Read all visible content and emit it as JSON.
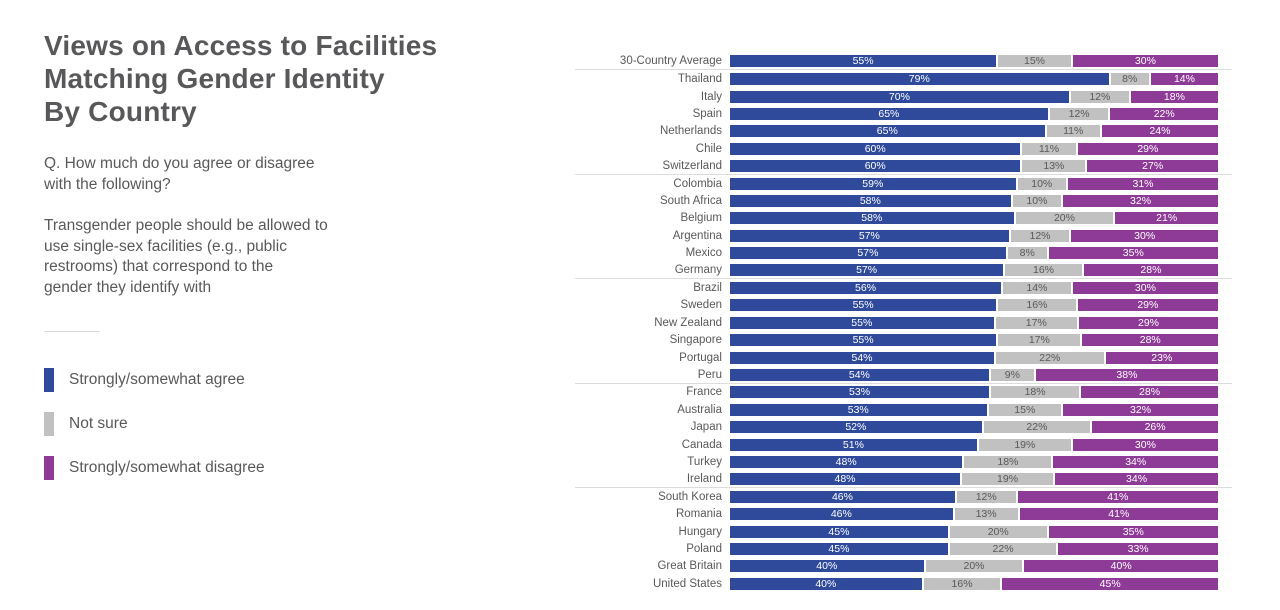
{
  "title": "Views on Access to Facilities\nMatching Gender Identity\nBy Country",
  "question": "Q. How much do you agree or disagree\nwith the following?",
  "statement": "Transgender people should be allowed to\nuse single-sex facilities (e.g., public\nrestrooms) that correspond to the\ngender they identify with",
  "legend": [
    {
      "label": "Strongly/somewhat agree",
      "color": "#2f4a9b"
    },
    {
      "label": "Not sure",
      "color": "#c2c1c1"
    },
    {
      "label": "Strongly/somewhat disagree",
      "color": "#8e3a97"
    }
  ],
  "chart_data": {
    "type": "bar",
    "orientation": "horizontal-stacked",
    "normalized_to_full_width": true,
    "value_suffix": "%",
    "categories": [
      "30-Country Average",
      "Thailand",
      "Italy",
      "Spain",
      "Netherlands",
      "Chile",
      "Switzerland",
      "Colombia",
      "South Africa",
      "Belgium",
      "Argentina",
      "Mexico",
      "Germany",
      "Brazil",
      "Sweden",
      "New Zealand",
      "Singapore",
      "Portugal",
      "Peru",
      "France",
      "Australia",
      "Japan",
      "Canada",
      "Turkey",
      "Ireland",
      "South Korea",
      "Romania",
      "Hungary",
      "Poland",
      "Great Britain",
      "United States"
    ],
    "series": [
      {
        "name": "Strongly/somewhat agree",
        "color": "#2f4a9b",
        "label_color": "#ffffff",
        "values": [
          55,
          79,
          70,
          65,
          65,
          60,
          60,
          59,
          58,
          58,
          57,
          57,
          57,
          56,
          55,
          55,
          55,
          54,
          54,
          53,
          53,
          52,
          51,
          48,
          48,
          46,
          46,
          45,
          45,
          40,
          40
        ]
      },
      {
        "name": "Not sure",
        "color": "#c2c1c1",
        "label_color": "#595959",
        "values": [
          15,
          8,
          12,
          12,
          11,
          11,
          13,
          10,
          10,
          20,
          12,
          8,
          16,
          14,
          16,
          17,
          17,
          22,
          9,
          18,
          15,
          22,
          19,
          18,
          19,
          12,
          13,
          20,
          22,
          20,
          16
        ]
      },
      {
        "name": "Strongly/somewhat disagree",
        "color": "#8e3a97",
        "label_color": "#ffffff",
        "values": [
          30,
          14,
          18,
          22,
          24,
          29,
          27,
          31,
          32,
          21,
          30,
          35,
          28,
          30,
          29,
          29,
          28,
          23,
          38,
          28,
          32,
          26,
          30,
          34,
          34,
          41,
          41,
          35,
          33,
          40,
          45
        ]
      }
    ],
    "divider_after_rows": [
      0,
      6,
      12,
      18,
      24
    ],
    "legend_position": "left",
    "grid": false
  }
}
